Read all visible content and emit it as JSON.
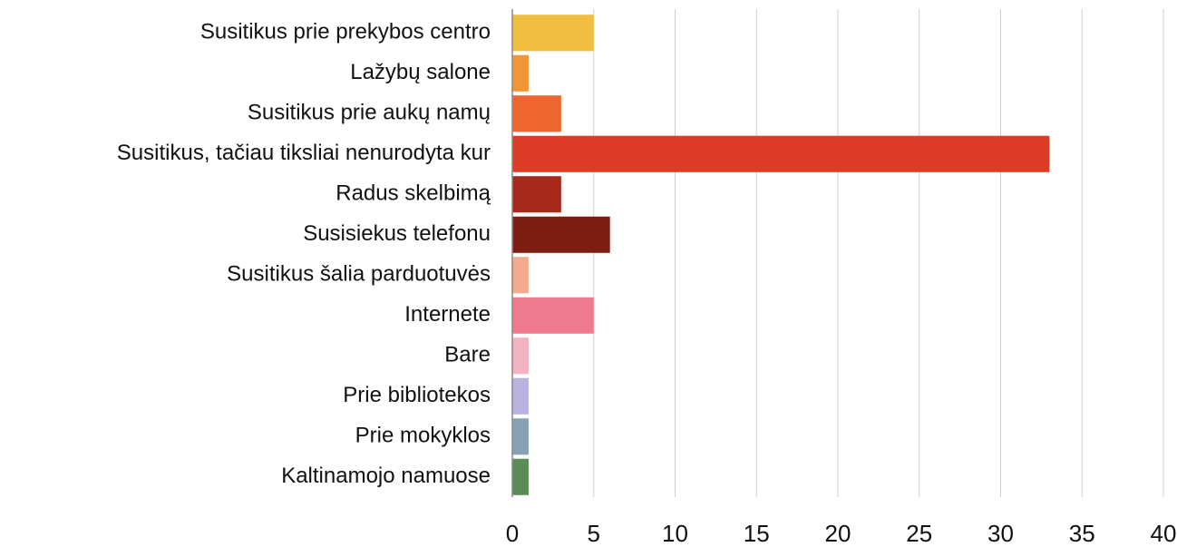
{
  "chart_data": {
    "type": "bar",
    "orientation": "horizontal",
    "categories": [
      "Susitikus prie prekybos centro",
      "Lažybų salone",
      "Susitikus prie aukų namų",
      "Susitikus, tačiau tiksliai nenurodyta kur",
      "Radus skelbimą",
      "Susisiekus telefonu",
      "Susitikus šalia parduotuvės",
      "Internete",
      "Bare",
      "Prie bibliotekos",
      "Prie mokyklos",
      "Kaltinamojo namuose"
    ],
    "values": [
      5,
      1,
      3,
      33,
      3,
      6,
      1,
      5,
      1,
      1,
      1,
      1
    ],
    "colors": [
      "#f0bf3f",
      "#f29535",
      "#ee6530",
      "#dc3c26",
      "#a52a1c",
      "#7d1e12",
      "#f4aa8e",
      "#f07a8d",
      "#f2b2c0",
      "#b9b3df",
      "#87a2b5",
      "#5b8b57"
    ],
    "xlim": [
      0,
      40
    ],
    "xticks": [
      0,
      5,
      10,
      15,
      20,
      25,
      30,
      35,
      40
    ],
    "grid": true
  }
}
